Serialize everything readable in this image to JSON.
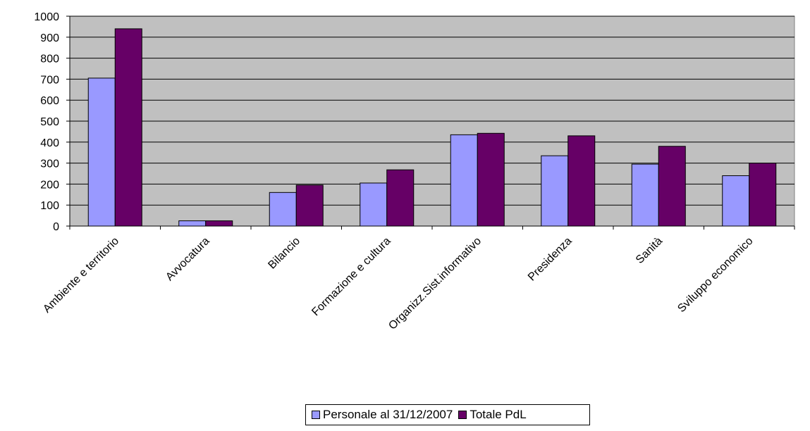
{
  "chart_data": {
    "type": "bar",
    "categories": [
      "Ambiente e territorio",
      "Avvocatura",
      "Bilancio",
      "Formazione e cultura",
      "Organizz.Sist.informativo",
      "Presidenza",
      "Sanità",
      "Sviluppo economico"
    ],
    "series": [
      {
        "name": "Personale al 31/12/2007",
        "color": "#9999ff",
        "values": [
          705,
          25,
          160,
          205,
          435,
          335,
          295,
          240
        ]
      },
      {
        "name": "Totale PdL",
        "color": "#660066",
        "values": [
          940,
          25,
          195,
          268,
          442,
          430,
          380,
          300
        ]
      }
    ],
    "y_ticks": [
      0,
      100,
      200,
      300,
      400,
      500,
      600,
      700,
      800,
      900,
      1000
    ],
    "ylim": [
      0,
      1000
    ],
    "plot_background": "#c0c0c0",
    "grid": true,
    "legend_position": "bottom"
  }
}
